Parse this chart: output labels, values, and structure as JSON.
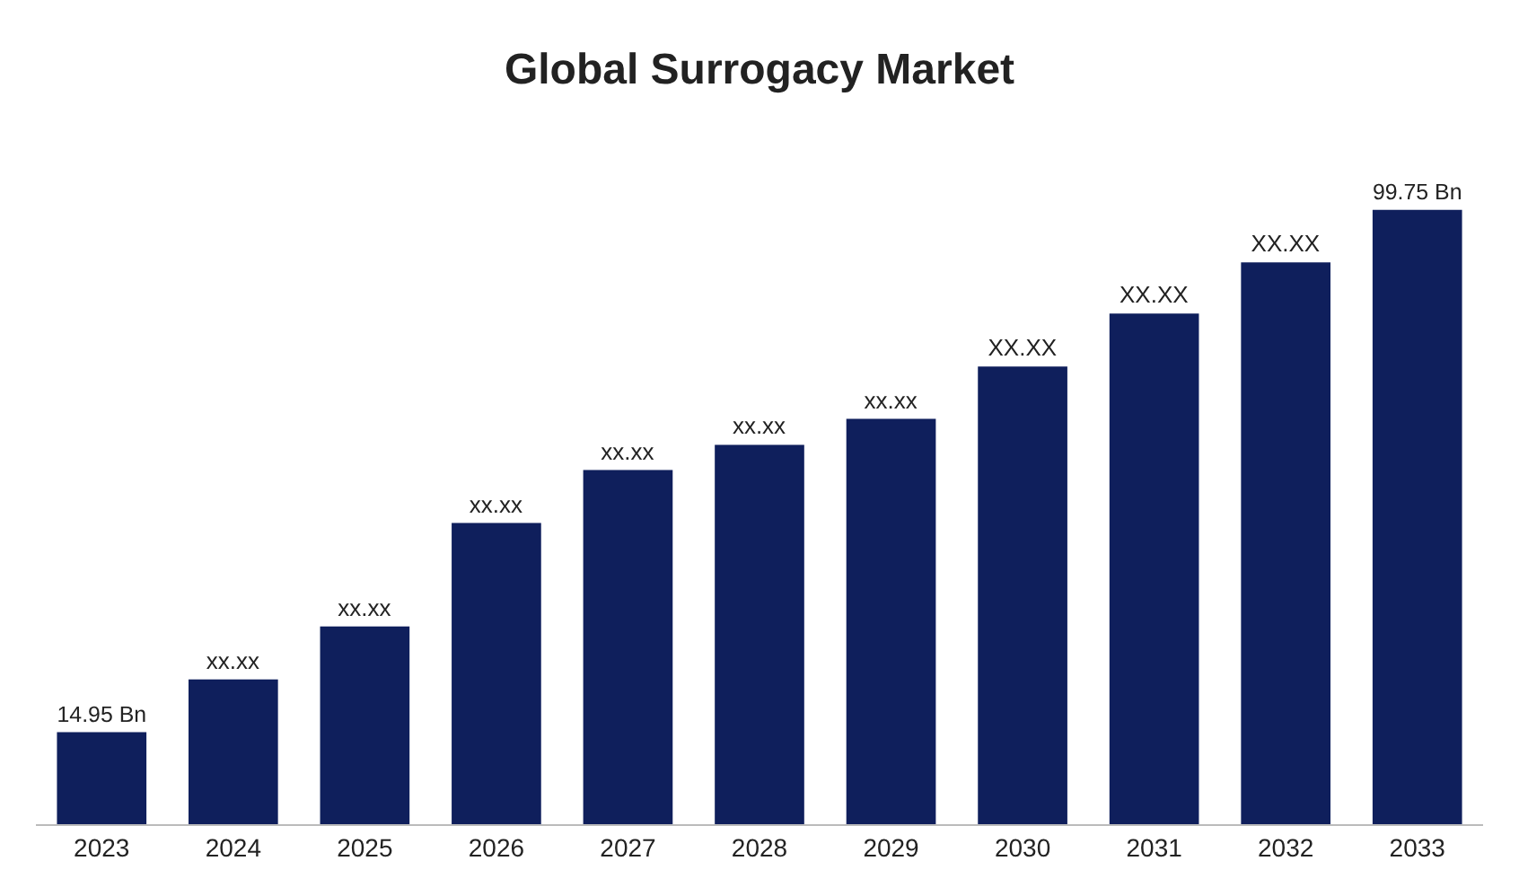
{
  "chart_data": {
    "type": "bar",
    "title": "Global Surrogacy Market",
    "categories": [
      "2023",
      "2024",
      "2025",
      "2026",
      "2027",
      "2028",
      "2029",
      "2030",
      "2031",
      "2032",
      "2033"
    ],
    "values": [
      14.95,
      23.5,
      32.1,
      48.9,
      57.5,
      61.6,
      65.8,
      74.3,
      82.9,
      91.2,
      99.75
    ],
    "value_labels": [
      "14.95 Bn",
      "xx.xx",
      "xx.xx",
      "xx.xx",
      "xx.xx",
      "xx.xx",
      "xx.xx",
      "XX.XX",
      "XX.XX",
      "XX.XX",
      "99.75 Bn"
    ],
    "color": "#0f1f5c",
    "legend": false
  }
}
